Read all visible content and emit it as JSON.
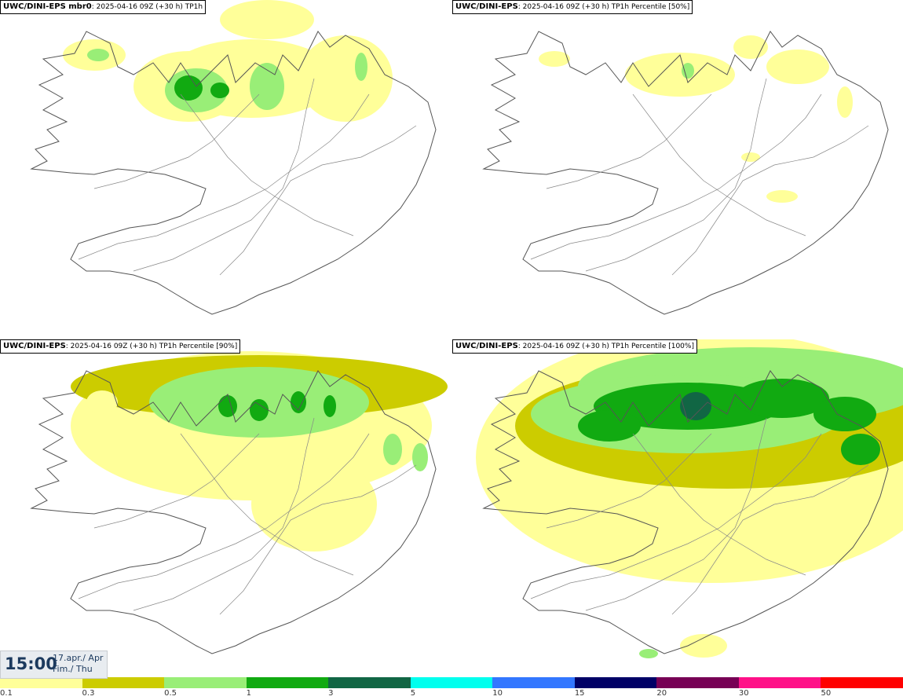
{
  "panels": [
    {
      "model": "UWC/DINI-EPS mbr0",
      "rest": ": 2025-04-16 09Z (+30 h) TP1h",
      "level": 1
    },
    {
      "model": "UWC/DINI-EPS",
      "rest": ": 2025-04-16 09Z (+30 h) TP1h Percentile [50%]",
      "level": 0
    },
    {
      "model": "UWC/DINI-EPS",
      "rest": ": 2025-04-16 09Z (+30 h) TP1h Percentile [90%]",
      "level": 2
    },
    {
      "model": "UWC/DINI-EPS",
      "rest": ": 2025-04-16 09Z (+30 h) TP1h Percentile [100%]",
      "level": 3
    }
  ],
  "valid_time": {
    "time": "15:00",
    "date_line1": "17.apr./ Apr",
    "date_line2": "Fim./ Thu"
  },
  "legend": {
    "colors": [
      "#ffff99",
      "#cccc00",
      "#99ee77",
      "#11aa11",
      "#116644",
      "#00ffee",
      "#3377ff",
      "#000066",
      "#770055",
      "#ff1188",
      "#ff0000"
    ],
    "labels": [
      "0.1",
      "0.3",
      "0.5",
      "1",
      "3",
      "5",
      "10",
      "15",
      "20",
      "30",
      "50"
    ]
  }
}
